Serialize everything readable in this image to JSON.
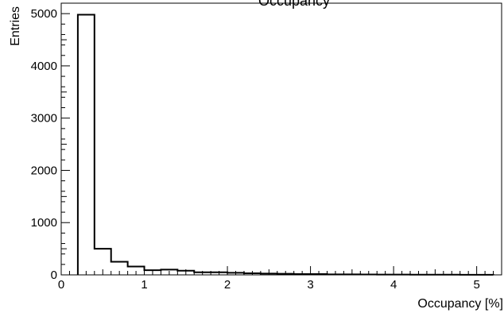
{
  "chart_data": {
    "type": "bar",
    "style": "step-histogram",
    "title": "Occupancy",
    "xlabel": "Occupancy [%]",
    "ylabel": "Entries",
    "xlim": [
      0,
      5.3
    ],
    "ylim": [
      0,
      5200
    ],
    "grid": false,
    "x_ticks": [
      {
        "value": 0,
        "label": "0"
      },
      {
        "value": 1,
        "label": "1"
      },
      {
        "value": 2,
        "label": "2"
      },
      {
        "value": 3,
        "label": "3"
      },
      {
        "value": 4,
        "label": "4"
      },
      {
        "value": 5,
        "label": "5"
      }
    ],
    "y_ticks": [
      {
        "value": 0,
        "label": "0"
      },
      {
        "value": 1000,
        "label": "1000"
      },
      {
        "value": 2000,
        "label": "2000"
      },
      {
        "value": 3000,
        "label": "3000"
      },
      {
        "value": 4000,
        "label": "4000"
      },
      {
        "value": 5000,
        "label": "5000"
      }
    ],
    "bin_edges": [
      0.2,
      0.4,
      0.6,
      0.8,
      1.0,
      1.2,
      1.4,
      1.6,
      1.8,
      2.0,
      2.2,
      2.4,
      2.6,
      2.8,
      3.0,
      3.2,
      3.4,
      3.6,
      3.8,
      4.0,
      4.2,
      4.4,
      4.6,
      4.8,
      5.0,
      5.2
    ],
    "values": [
      4980,
      500,
      250,
      160,
      90,
      100,
      80,
      50,
      50,
      40,
      30,
      25,
      20,
      15,
      15,
      10,
      10,
      8,
      6,
      5,
      4,
      3,
      3,
      2,
      2
    ]
  }
}
